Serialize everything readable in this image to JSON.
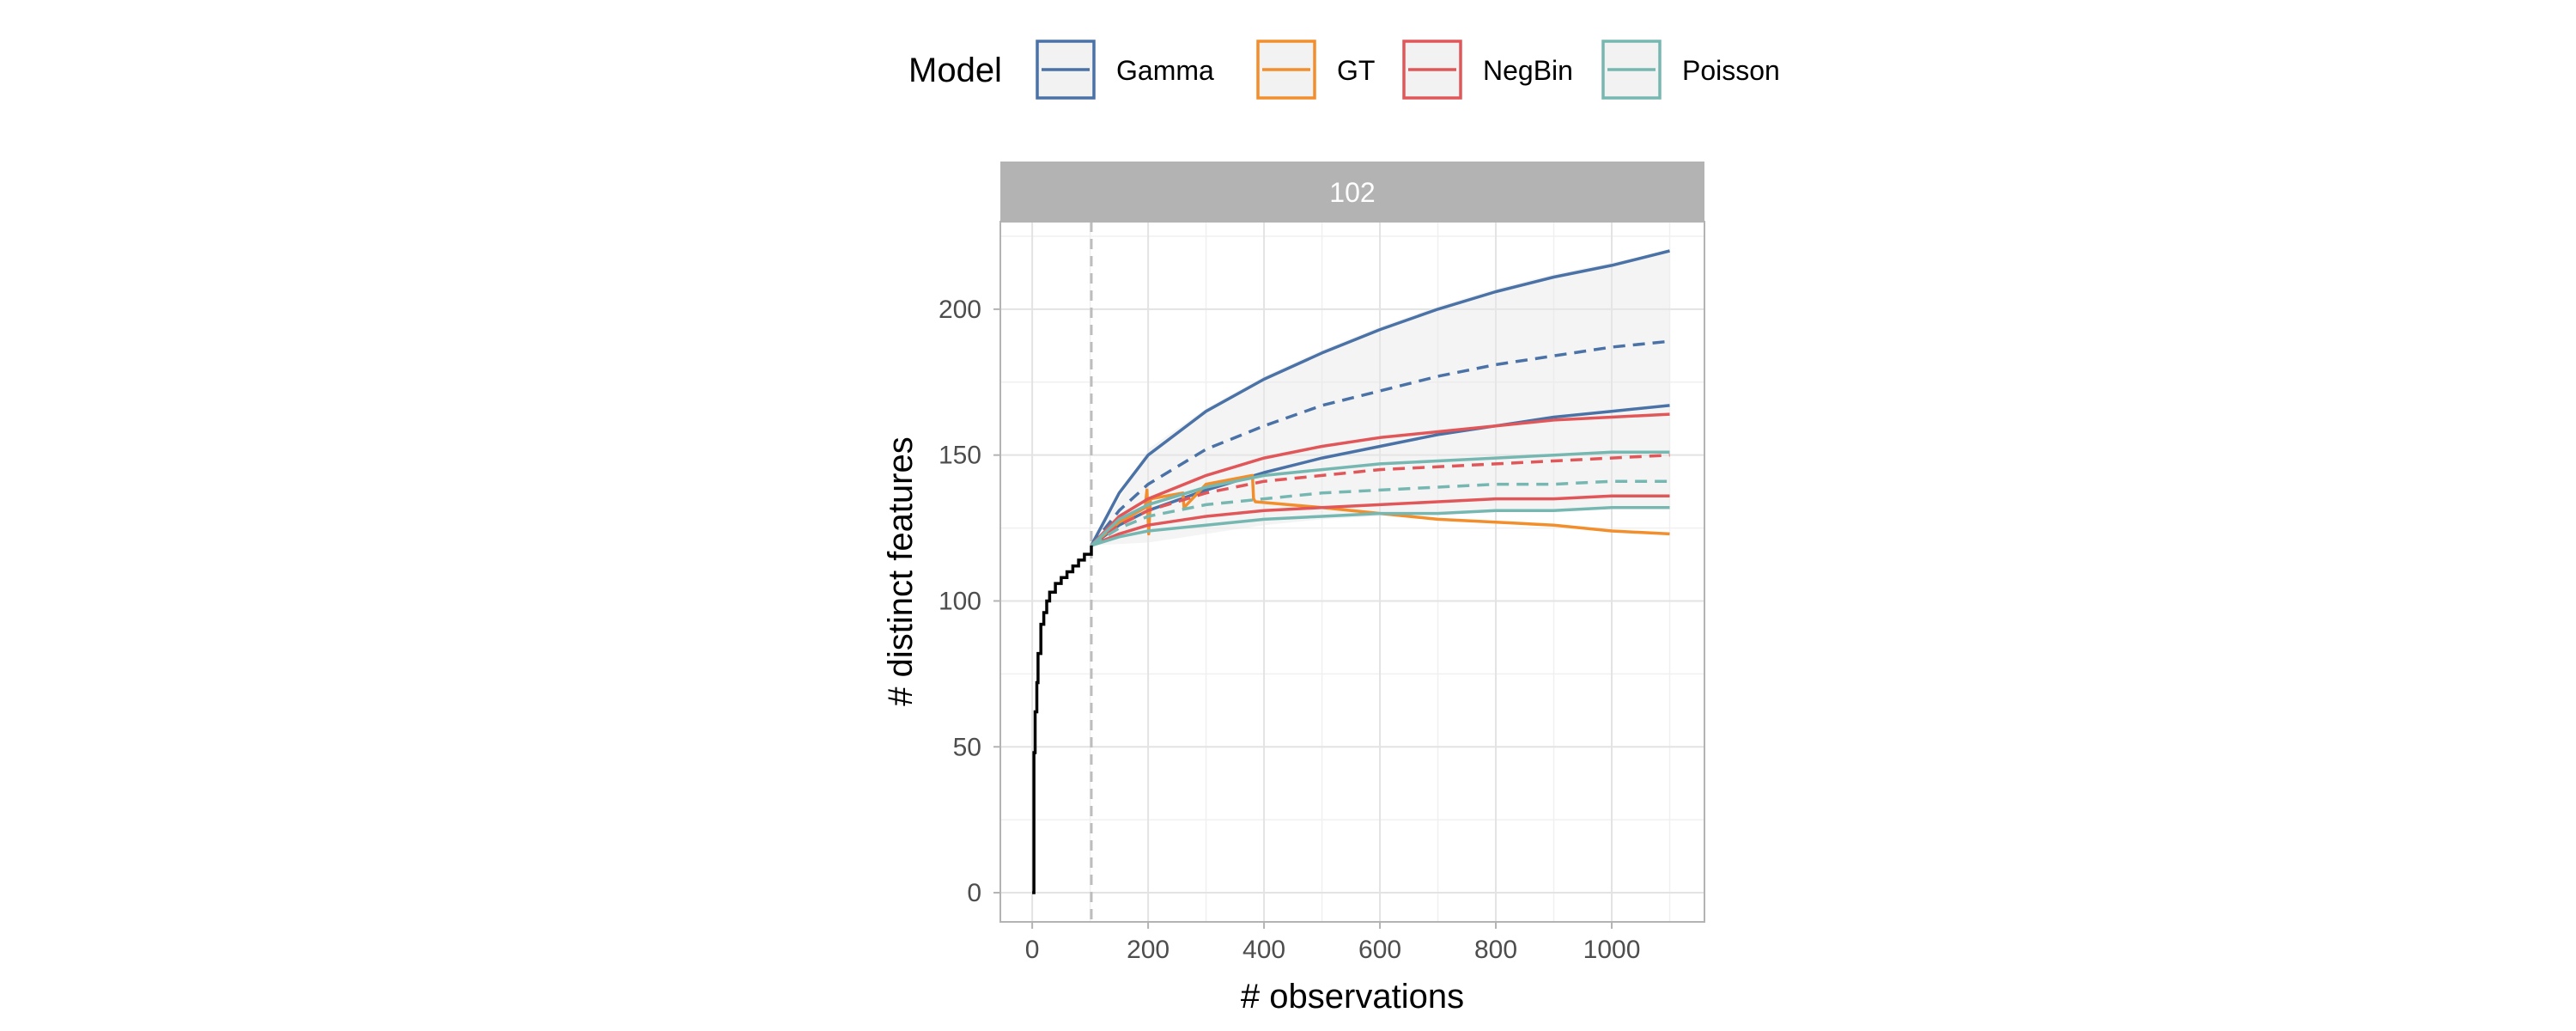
{
  "chart_data": {
    "type": "line",
    "facet_label": "102",
    "xlabel": "# observations",
    "ylabel": "# distinct features",
    "xlim": [
      -55,
      1160
    ],
    "ylim": [
      -10,
      230
    ],
    "x_ticks": [
      0,
      200,
      400,
      600,
      800,
      1000
    ],
    "y_ticks": [
      0,
      50,
      100,
      150,
      200
    ],
    "grid": true,
    "vline_x": 102,
    "legend": {
      "title": "Model",
      "position": "top",
      "items": [
        {
          "name": "Gamma",
          "color": "#4a72a6"
        },
        {
          "name": "GT",
          "color": "#f28e2b"
        },
        {
          "name": "NegBin",
          "color": "#e15759"
        },
        {
          "name": "Poisson",
          "color": "#76b7b2"
        }
      ]
    },
    "observed": {
      "color": "#000000",
      "x": [
        0,
        3,
        5,
        8,
        10,
        15,
        20,
        25,
        30,
        40,
        50,
        60,
        70,
        80,
        90,
        102
      ],
      "y": [
        0,
        48,
        62,
        72,
        82,
        92,
        96,
        100,
        103,
        106,
        108,
        110,
        112,
        114,
        116,
        119
      ]
    },
    "band_x": [
      102,
      200,
      300,
      400,
      500,
      600,
      700,
      800,
      900,
      1000,
      1100
    ],
    "band_upper": [
      119,
      152,
      166,
      177,
      186,
      194,
      201,
      207,
      212,
      216,
      220
    ],
    "band_lower": [
      119,
      120,
      123,
      126,
      128,
      129,
      130,
      131,
      131,
      132,
      132
    ],
    "series": [
      {
        "name": "Gamma",
        "color": "#4a72a6",
        "lines": [
          {
            "style": "solid",
            "x": [
              102,
              150,
              200,
              300,
              400,
              500,
              600,
              700,
              800,
              900,
              1000,
              1100
            ],
            "y": [
              119,
              137,
              150,
              165,
              176,
              185,
              193,
              200,
              206,
              211,
              215,
              220
            ]
          },
          {
            "style": "dashed",
            "x": [
              102,
              150,
              200,
              300,
              400,
              500,
              600,
              700,
              800,
              900,
              1000,
              1100
            ],
            "y": [
              119,
              131,
              140,
              152,
              160,
              167,
              172,
              177,
              181,
              184,
              187,
              189
            ]
          },
          {
            "style": "solid",
            "x": [
              102,
              150,
              200,
              300,
              400,
              500,
              600,
              700,
              800,
              900,
              1000,
              1100
            ],
            "y": [
              119,
              126,
              131,
              138,
              144,
              149,
              153,
              157,
              160,
              163,
              165,
              167
            ]
          }
        ]
      },
      {
        "name": "GT",
        "color": "#f28e2b",
        "lines": [
          {
            "style": "solid",
            "x": [
              102,
              150,
              195,
              198,
              201,
              204,
              260,
              262,
              300,
              380,
              382,
              385,
              500,
              600,
              700,
              800,
              900,
              1000,
              1100
            ],
            "y": [
              119,
              127,
              132,
              138,
              123,
              135,
              137,
              132,
              140,
              143,
              135,
              134,
              132,
              130,
              128,
              127,
              126,
              124,
              123
            ]
          }
        ]
      },
      {
        "name": "NegBin",
        "color": "#e15759",
        "lines": [
          {
            "style": "solid",
            "x": [
              102,
              150,
              200,
              300,
              400,
              500,
              600,
              700,
              800,
              900,
              1000,
              1100
            ],
            "y": [
              119,
              129,
              135,
              143,
              149,
              153,
              156,
              158,
              160,
              162,
              163,
              164
            ]
          },
          {
            "style": "dashed",
            "x": [
              102,
              150,
              200,
              300,
              400,
              500,
              600,
              700,
              800,
              900,
              1000,
              1100
            ],
            "y": [
              119,
              126,
              131,
              137,
              141,
              143,
              145,
              146,
              147,
              148,
              149,
              150
            ]
          },
          {
            "style": "solid",
            "x": [
              102,
              150,
              200,
              300,
              400,
              500,
              600,
              700,
              800,
              900,
              1000,
              1100
            ],
            "y": [
              119,
              123,
              126,
              129,
              131,
              132,
              133,
              134,
              135,
              135,
              136,
              136
            ]
          }
        ]
      },
      {
        "name": "Poisson",
        "color": "#76b7b2",
        "lines": [
          {
            "style": "solid",
            "x": [
              102,
              150,
              200,
              300,
              400,
              500,
              600,
              700,
              800,
              900,
              1000,
              1100
            ],
            "y": [
              119,
              128,
              133,
              139,
              143,
              145,
              147,
              148,
              149,
              150,
              151,
              151
            ]
          },
          {
            "style": "dashed",
            "x": [
              102,
              150,
              200,
              300,
              400,
              500,
              600,
              700,
              800,
              900,
              1000,
              1100
            ],
            "y": [
              119,
              125,
              129,
              133,
              135,
              137,
              138,
              139,
              140,
              140,
              141,
              141
            ]
          },
          {
            "style": "solid",
            "x": [
              102,
              150,
              200,
              300,
              400,
              500,
              600,
              700,
              800,
              900,
              1000,
              1100
            ],
            "y": [
              119,
              122,
              124,
              126,
              128,
              129,
              130,
              130,
              131,
              131,
              132,
              132
            ]
          }
        ]
      }
    ]
  }
}
